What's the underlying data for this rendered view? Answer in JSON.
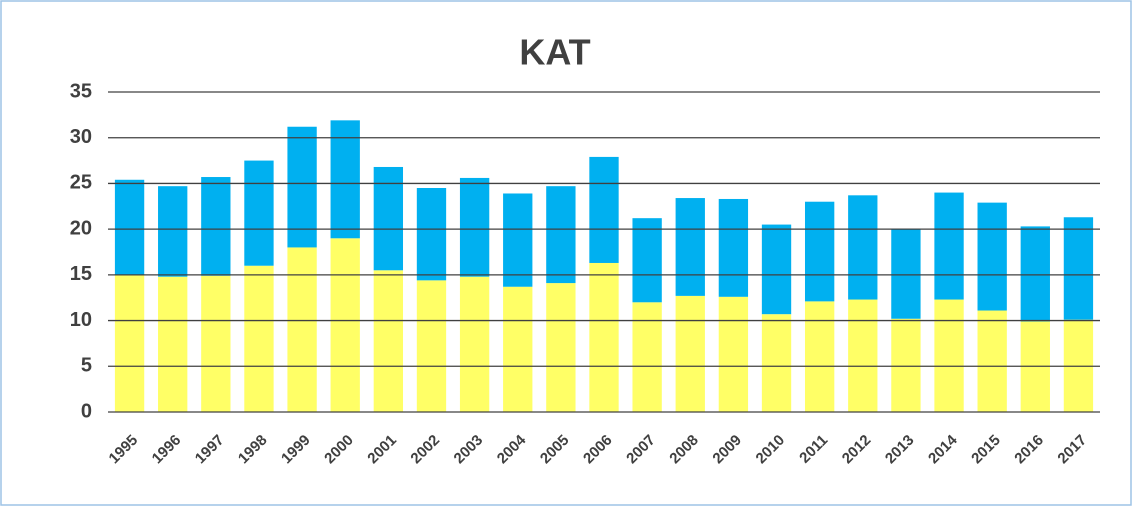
{
  "chart_data": {
    "type": "stacked_bar",
    "title": "KAT",
    "categories": [
      "1995",
      "1996",
      "1997",
      "1998",
      "1999",
      "2000",
      "2001",
      "2002",
      "2003",
      "2004",
      "2005",
      "2006",
      "2007",
      "2008",
      "2009",
      "2010",
      "2011",
      "2012",
      "2013",
      "2014",
      "2015",
      "2016",
      "2017"
    ],
    "series": [
      {
        "color": "#ffff66",
        "values": [
          15.0,
          14.8,
          14.9,
          16.0,
          18.0,
          19.0,
          15.5,
          14.4,
          14.8,
          13.7,
          14.1,
          16.3,
          12.0,
          12.7,
          12.6,
          10.7,
          12.1,
          12.3,
          10.2,
          12.3,
          11.1,
          9.9,
          10.1
        ]
      },
      {
        "color": "#00b0f0",
        "values": [
          10.4,
          9.9,
          10.8,
          11.5,
          13.2,
          12.9,
          11.3,
          10.1,
          10.8,
          10.2,
          10.6,
          11.6,
          9.2,
          10.7,
          10.7,
          9.8,
          10.9,
          11.4,
          9.8,
          11.7,
          11.8,
          10.4,
          11.2
        ]
      }
    ],
    "ylim": [
      0,
      35
    ],
    "yticks": [
      0,
      5,
      10,
      15,
      20,
      25,
      30,
      35
    ],
    "grid": true
  }
}
